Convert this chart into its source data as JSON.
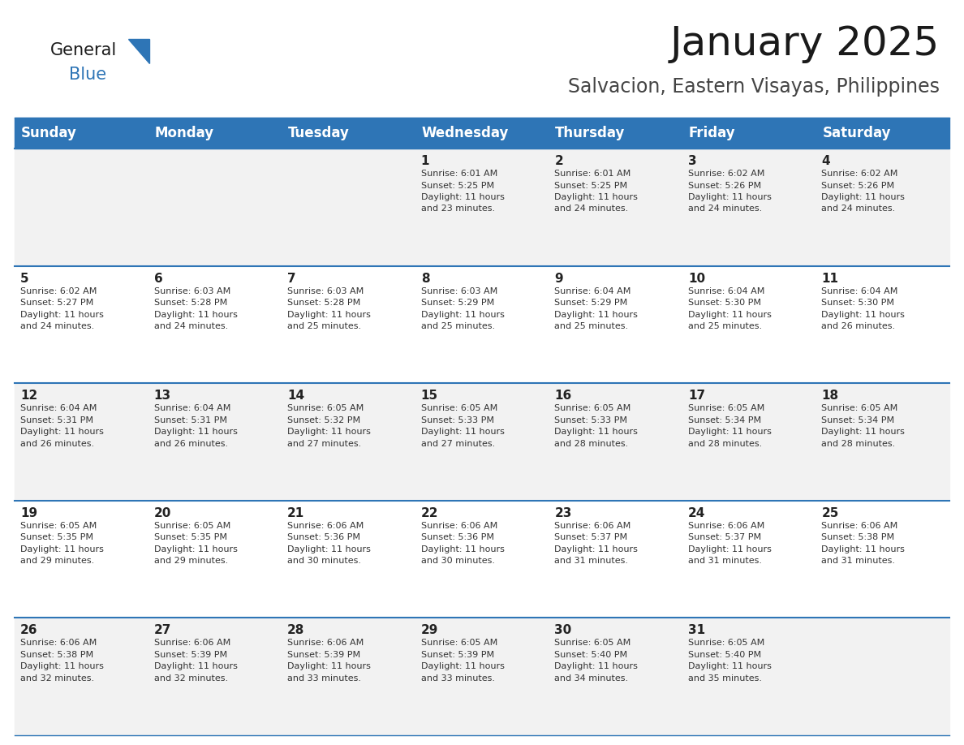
{
  "title": "January 2025",
  "subtitle": "Salvacion, Eastern Visayas, Philippines",
  "header_bg": "#2E75B6",
  "header_text_color": "#FFFFFF",
  "row_bg_light": "#F2F2F2",
  "row_bg_white": "#FFFFFF",
  "border_color": "#2E75B6",
  "text_color": "#333333",
  "day_number_color": "#222222",
  "days_of_week": [
    "Sunday",
    "Monday",
    "Tuesday",
    "Wednesday",
    "Thursday",
    "Friday",
    "Saturday"
  ],
  "calendar_data": [
    [
      {
        "day": "",
        "sunrise": "",
        "sunset": "",
        "daylight_h": "",
        "daylight_m": ""
      },
      {
        "day": "",
        "sunrise": "",
        "sunset": "",
        "daylight_h": "",
        "daylight_m": ""
      },
      {
        "day": "",
        "sunrise": "",
        "sunset": "",
        "daylight_h": "",
        "daylight_m": ""
      },
      {
        "day": "1",
        "sunrise": "6:01 AM",
        "sunset": "5:25 PM",
        "daylight_h": "11 hours",
        "daylight_m": "23 minutes."
      },
      {
        "day": "2",
        "sunrise": "6:01 AM",
        "sunset": "5:25 PM",
        "daylight_h": "11 hours",
        "daylight_m": "24 minutes."
      },
      {
        "day": "3",
        "sunrise": "6:02 AM",
        "sunset": "5:26 PM",
        "daylight_h": "11 hours",
        "daylight_m": "24 minutes."
      },
      {
        "day": "4",
        "sunrise": "6:02 AM",
        "sunset": "5:26 PM",
        "daylight_h": "11 hours",
        "daylight_m": "24 minutes."
      }
    ],
    [
      {
        "day": "5",
        "sunrise": "6:02 AM",
        "sunset": "5:27 PM",
        "daylight_h": "11 hours",
        "daylight_m": "24 minutes."
      },
      {
        "day": "6",
        "sunrise": "6:03 AM",
        "sunset": "5:28 PM",
        "daylight_h": "11 hours",
        "daylight_m": "24 minutes."
      },
      {
        "day": "7",
        "sunrise": "6:03 AM",
        "sunset": "5:28 PM",
        "daylight_h": "11 hours",
        "daylight_m": "25 minutes."
      },
      {
        "day": "8",
        "sunrise": "6:03 AM",
        "sunset": "5:29 PM",
        "daylight_h": "11 hours",
        "daylight_m": "25 minutes."
      },
      {
        "day": "9",
        "sunrise": "6:04 AM",
        "sunset": "5:29 PM",
        "daylight_h": "11 hours",
        "daylight_m": "25 minutes."
      },
      {
        "day": "10",
        "sunrise": "6:04 AM",
        "sunset": "5:30 PM",
        "daylight_h": "11 hours",
        "daylight_m": "25 minutes."
      },
      {
        "day": "11",
        "sunrise": "6:04 AM",
        "sunset": "5:30 PM",
        "daylight_h": "11 hours",
        "daylight_m": "26 minutes."
      }
    ],
    [
      {
        "day": "12",
        "sunrise": "6:04 AM",
        "sunset": "5:31 PM",
        "daylight_h": "11 hours",
        "daylight_m": "26 minutes."
      },
      {
        "day": "13",
        "sunrise": "6:04 AM",
        "sunset": "5:31 PM",
        "daylight_h": "11 hours",
        "daylight_m": "26 minutes."
      },
      {
        "day": "14",
        "sunrise": "6:05 AM",
        "sunset": "5:32 PM",
        "daylight_h": "11 hours",
        "daylight_m": "27 minutes."
      },
      {
        "day": "15",
        "sunrise": "6:05 AM",
        "sunset": "5:33 PM",
        "daylight_h": "11 hours",
        "daylight_m": "27 minutes."
      },
      {
        "day": "16",
        "sunrise": "6:05 AM",
        "sunset": "5:33 PM",
        "daylight_h": "11 hours",
        "daylight_m": "28 minutes."
      },
      {
        "day": "17",
        "sunrise": "6:05 AM",
        "sunset": "5:34 PM",
        "daylight_h": "11 hours",
        "daylight_m": "28 minutes."
      },
      {
        "day": "18",
        "sunrise": "6:05 AM",
        "sunset": "5:34 PM",
        "daylight_h": "11 hours",
        "daylight_m": "28 minutes."
      }
    ],
    [
      {
        "day": "19",
        "sunrise": "6:05 AM",
        "sunset": "5:35 PM",
        "daylight_h": "11 hours",
        "daylight_m": "29 minutes."
      },
      {
        "day": "20",
        "sunrise": "6:05 AM",
        "sunset": "5:35 PM",
        "daylight_h": "11 hours",
        "daylight_m": "29 minutes."
      },
      {
        "day": "21",
        "sunrise": "6:06 AM",
        "sunset": "5:36 PM",
        "daylight_h": "11 hours",
        "daylight_m": "30 minutes."
      },
      {
        "day": "22",
        "sunrise": "6:06 AM",
        "sunset": "5:36 PM",
        "daylight_h": "11 hours",
        "daylight_m": "30 minutes."
      },
      {
        "day": "23",
        "sunrise": "6:06 AM",
        "sunset": "5:37 PM",
        "daylight_h": "11 hours",
        "daylight_m": "31 minutes."
      },
      {
        "day": "24",
        "sunrise": "6:06 AM",
        "sunset": "5:37 PM",
        "daylight_h": "11 hours",
        "daylight_m": "31 minutes."
      },
      {
        "day": "25",
        "sunrise": "6:06 AM",
        "sunset": "5:38 PM",
        "daylight_h": "11 hours",
        "daylight_m": "31 minutes."
      }
    ],
    [
      {
        "day": "26",
        "sunrise": "6:06 AM",
        "sunset": "5:38 PM",
        "daylight_h": "11 hours",
        "daylight_m": "32 minutes."
      },
      {
        "day": "27",
        "sunrise": "6:06 AM",
        "sunset": "5:39 PM",
        "daylight_h": "11 hours",
        "daylight_m": "32 minutes."
      },
      {
        "day": "28",
        "sunrise": "6:06 AM",
        "sunset": "5:39 PM",
        "daylight_h": "11 hours",
        "daylight_m": "33 minutes."
      },
      {
        "day": "29",
        "sunrise": "6:05 AM",
        "sunset": "5:39 PM",
        "daylight_h": "11 hours",
        "daylight_m": "33 minutes."
      },
      {
        "day": "30",
        "sunrise": "6:05 AM",
        "sunset": "5:40 PM",
        "daylight_h": "11 hours",
        "daylight_m": "34 minutes."
      },
      {
        "day": "31",
        "sunrise": "6:05 AM",
        "sunset": "5:40 PM",
        "daylight_h": "11 hours",
        "daylight_m": "35 minutes."
      },
      {
        "day": "",
        "sunrise": "",
        "sunset": "",
        "daylight_h": "",
        "daylight_m": ""
      }
    ]
  ],
  "logo_text1": "General",
  "logo_text2": "Blue",
  "logo_color1": "#1a1a1a",
  "logo_color2": "#2E75B6",
  "title_fontsize": 36,
  "subtitle_fontsize": 17,
  "header_fontsize": 12,
  "day_num_fontsize": 11,
  "cell_text_fontsize": 8
}
